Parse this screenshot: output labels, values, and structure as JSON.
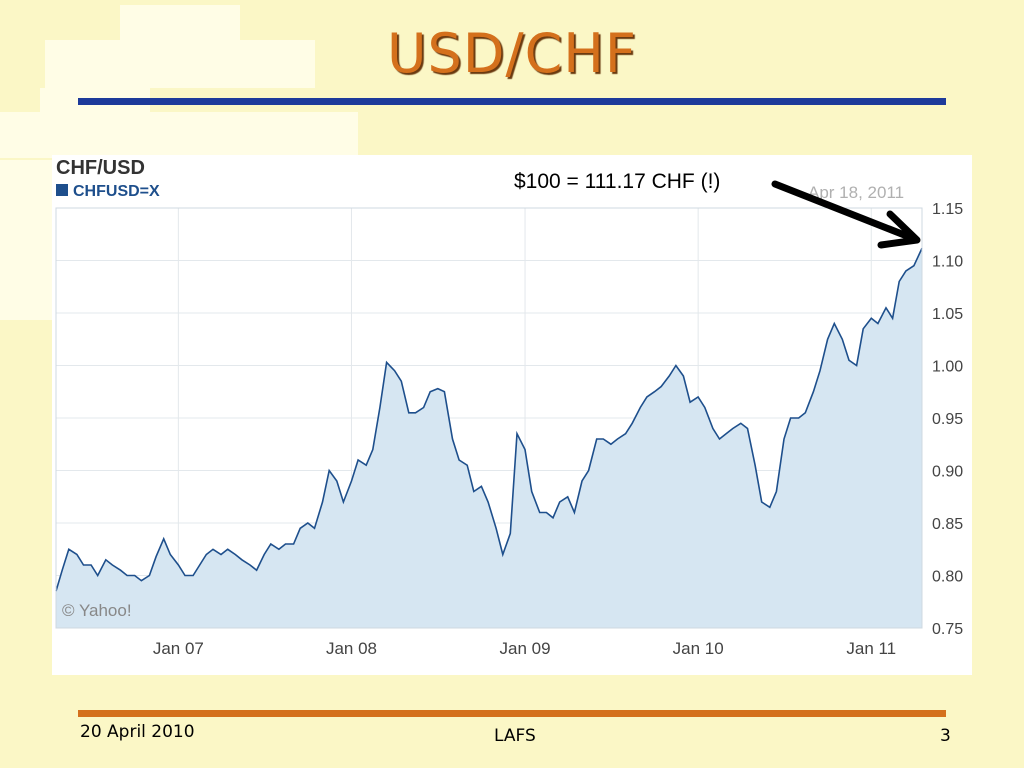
{
  "slide": {
    "title": "USD/CHF",
    "footer_date": "20 April 2010",
    "footer_center": "LAFS",
    "footer_page": "3"
  },
  "annotation": "$100 = 111.17 CHF (!)",
  "colors": {
    "background": "#fbf7c6",
    "title": "#d4701c",
    "top_rule": "#1d3a9a",
    "bottom_rule": "#d4701c",
    "series_line": "#1e4f8c",
    "series_fill": "#d6e6f2"
  },
  "chart_data": {
    "type": "area",
    "title": "CHF/USD",
    "legend": [
      "CHFUSD=X"
    ],
    "date_label": "Apr 18, 2011",
    "watermark": "© Yahoo!",
    "x_ticks": [
      "Jan 07",
      "Jan 08",
      "Jan 09",
      "Jan 10",
      "Jan 11"
    ],
    "y_ticks": [
      "0.75",
      "0.80",
      "0.85",
      "0.90",
      "0.95",
      "1.00",
      "1.05",
      "1.10",
      "1.15"
    ],
    "ylim": [
      0.75,
      1.15
    ],
    "xlim": [
      "2006-04-18",
      "2011-04-18"
    ],
    "y_axis_side": "right",
    "grid": true,
    "series": [
      {
        "name": "CHFUSD=X",
        "points": [
          [
            "2006-04-18",
            0.785
          ],
          [
            "2006-05-01",
            0.805
          ],
          [
            "2006-05-15",
            0.825
          ],
          [
            "2006-06-01",
            0.82
          ],
          [
            "2006-06-15",
            0.81
          ],
          [
            "2006-07-01",
            0.81
          ],
          [
            "2006-07-15",
            0.8
          ],
          [
            "2006-08-01",
            0.815
          ],
          [
            "2006-08-15",
            0.81
          ],
          [
            "2006-09-01",
            0.805
          ],
          [
            "2006-09-15",
            0.8
          ],
          [
            "2006-10-01",
            0.8
          ],
          [
            "2006-10-15",
            0.795
          ],
          [
            "2006-11-01",
            0.8
          ],
          [
            "2006-11-15",
            0.818
          ],
          [
            "2006-12-01",
            0.835
          ],
          [
            "2006-12-15",
            0.82
          ],
          [
            "2007-01-01",
            0.81
          ],
          [
            "2007-01-15",
            0.8
          ],
          [
            "2007-02-01",
            0.8
          ],
          [
            "2007-02-15",
            0.81
          ],
          [
            "2007-03-01",
            0.82
          ],
          [
            "2007-03-15",
            0.825
          ],
          [
            "2007-04-01",
            0.82
          ],
          [
            "2007-04-15",
            0.825
          ],
          [
            "2007-05-01",
            0.82
          ],
          [
            "2007-05-15",
            0.815
          ],
          [
            "2007-06-01",
            0.81
          ],
          [
            "2007-06-15",
            0.805
          ],
          [
            "2007-07-01",
            0.82
          ],
          [
            "2007-07-15",
            0.83
          ],
          [
            "2007-08-01",
            0.825
          ],
          [
            "2007-08-15",
            0.83
          ],
          [
            "2007-09-01",
            0.83
          ],
          [
            "2007-09-15",
            0.845
          ],
          [
            "2007-10-01",
            0.85
          ],
          [
            "2007-10-15",
            0.845
          ],
          [
            "2007-11-01",
            0.87
          ],
          [
            "2007-11-15",
            0.9
          ],
          [
            "2007-12-01",
            0.89
          ],
          [
            "2007-12-15",
            0.87
          ],
          [
            "2008-01-01",
            0.89
          ],
          [
            "2008-01-15",
            0.91
          ],
          [
            "2008-02-01",
            0.905
          ],
          [
            "2008-02-15",
            0.92
          ],
          [
            "2008-03-01",
            0.96
          ],
          [
            "2008-03-15",
            1.003
          ],
          [
            "2008-04-01",
            0.995
          ],
          [
            "2008-04-15",
            0.985
          ],
          [
            "2008-05-01",
            0.955
          ],
          [
            "2008-05-15",
            0.955
          ],
          [
            "2008-06-01",
            0.96
          ],
          [
            "2008-06-15",
            0.975
          ],
          [
            "2008-07-01",
            0.978
          ],
          [
            "2008-07-15",
            0.975
          ],
          [
            "2008-08-01",
            0.93
          ],
          [
            "2008-08-15",
            0.91
          ],
          [
            "2008-09-01",
            0.905
          ],
          [
            "2008-09-15",
            0.88
          ],
          [
            "2008-10-01",
            0.885
          ],
          [
            "2008-10-15",
            0.87
          ],
          [
            "2008-11-01",
            0.845
          ],
          [
            "2008-11-15",
            0.82
          ],
          [
            "2008-12-01",
            0.84
          ],
          [
            "2008-12-15",
            0.935
          ],
          [
            "2009-01-01",
            0.92
          ],
          [
            "2009-01-15",
            0.88
          ],
          [
            "2009-02-01",
            0.86
          ],
          [
            "2009-02-15",
            0.86
          ],
          [
            "2009-03-01",
            0.855
          ],
          [
            "2009-03-15",
            0.87
          ],
          [
            "2009-04-01",
            0.875
          ],
          [
            "2009-04-15",
            0.86
          ],
          [
            "2009-05-01",
            0.89
          ],
          [
            "2009-05-15",
            0.9
          ],
          [
            "2009-06-01",
            0.93
          ],
          [
            "2009-06-15",
            0.93
          ],
          [
            "2009-07-01",
            0.925
          ],
          [
            "2009-07-15",
            0.93
          ],
          [
            "2009-08-01",
            0.935
          ],
          [
            "2009-08-15",
            0.945
          ],
          [
            "2009-09-01",
            0.96
          ],
          [
            "2009-09-15",
            0.97
          ],
          [
            "2009-10-01",
            0.975
          ],
          [
            "2009-10-15",
            0.98
          ],
          [
            "2009-11-01",
            0.99
          ],
          [
            "2009-11-15",
            1.0
          ],
          [
            "2009-12-01",
            0.99
          ],
          [
            "2009-12-15",
            0.965
          ],
          [
            "2010-01-01",
            0.97
          ],
          [
            "2010-01-15",
            0.96
          ],
          [
            "2010-02-01",
            0.94
          ],
          [
            "2010-02-15",
            0.93
          ],
          [
            "2010-03-01",
            0.935
          ],
          [
            "2010-03-15",
            0.94
          ],
          [
            "2010-04-01",
            0.945
          ],
          [
            "2010-04-15",
            0.94
          ],
          [
            "2010-05-01",
            0.905
          ],
          [
            "2010-05-15",
            0.87
          ],
          [
            "2010-06-01",
            0.865
          ],
          [
            "2010-06-15",
            0.88
          ],
          [
            "2010-07-01",
            0.93
          ],
          [
            "2010-07-15",
            0.95
          ],
          [
            "2010-08-01",
            0.95
          ],
          [
            "2010-08-15",
            0.955
          ],
          [
            "2010-09-01",
            0.975
          ],
          [
            "2010-09-15",
            0.995
          ],
          [
            "2010-10-01",
            1.025
          ],
          [
            "2010-10-15",
            1.04
          ],
          [
            "2010-11-01",
            1.025
          ],
          [
            "2010-11-15",
            1.005
          ],
          [
            "2010-12-01",
            1.0
          ],
          [
            "2010-12-15",
            1.035
          ],
          [
            "2011-01-01",
            1.045
          ],
          [
            "2011-01-15",
            1.04
          ],
          [
            "2011-02-01",
            1.055
          ],
          [
            "2011-02-15",
            1.045
          ],
          [
            "2011-03-01",
            1.08
          ],
          [
            "2011-03-15",
            1.09
          ],
          [
            "2011-04-01",
            1.095
          ],
          [
            "2011-04-18",
            1.1117
          ]
        ]
      }
    ]
  }
}
